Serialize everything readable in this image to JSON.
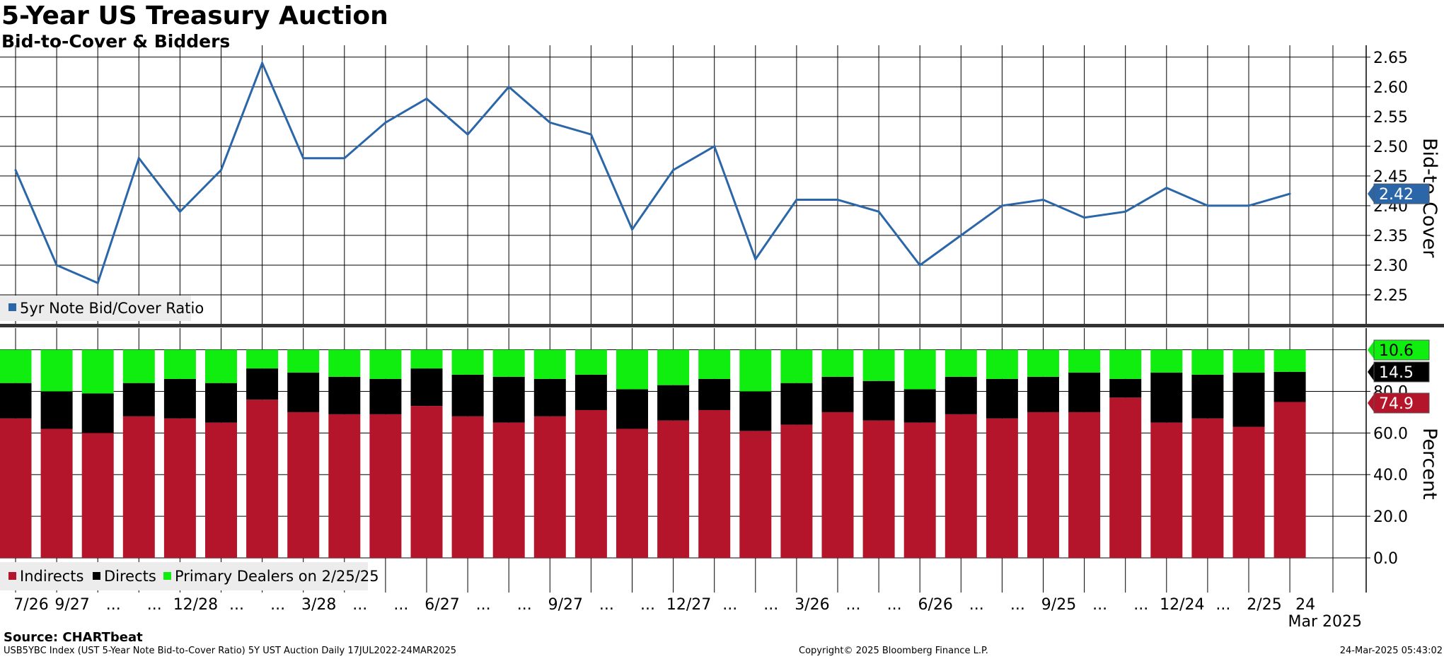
{
  "title": "5-Year US Treasury Auction",
  "subtitle": "Bid-to-Cover & Bidders",
  "source": "Source: CHARTbeat",
  "footer": {
    "left": "USB5YBC Index (UST 5-Year Note Bid-to-Cover Ratio) 5Y UST Auction  Daily 17JUL2022-24MAR2025",
    "center": "Copyright© 2025 Bloomberg Finance L.P.",
    "right": "24-Mar-2025 05:43:02"
  },
  "colors": {
    "line": "#2a66a8",
    "indirects": "#b5152b",
    "directs": "#000000",
    "dealers": "#10ee10",
    "grid": "#000000",
    "legend_bg": "#ececec"
  },
  "x_axis": {
    "tick_labels": [
      "7/26",
      "9/27",
      "...",
      "...",
      "12/28",
      "...",
      "...",
      "3/28",
      "...",
      "...",
      "6/27",
      "...",
      "...",
      "9/27",
      "...",
      "...",
      "12/27",
      "...",
      "...",
      "3/26",
      "...",
      "...",
      "6/26",
      "...",
      "...",
      "9/25",
      "...",
      "...",
      "12/24",
      "...",
      "2/25",
      "24"
    ],
    "year_label": "Mar 2025"
  },
  "chart_data": [
    {
      "type": "line",
      "ylabel": "Bid-to-Cover",
      "ylim": [
        2.2,
        2.67
      ],
      "y_ticks": [
        "2.25",
        "2.30",
        "2.35",
        "2.40",
        "2.45",
        "2.50",
        "2.55",
        "2.60",
        "2.65"
      ],
      "grid": true,
      "legend_position": "bottom-left",
      "series": [
        {
          "name": "5yr Note Bid/Cover Ratio",
          "values": [
            2.46,
            2.3,
            2.27,
            2.48,
            2.39,
            2.46,
            2.64,
            2.48,
            2.48,
            2.54,
            2.58,
            2.52,
            2.6,
            2.54,
            2.52,
            2.36,
            2.46,
            2.5,
            2.31,
            2.41,
            2.41,
            2.39,
            2.3,
            2.35,
            2.4,
            2.41,
            2.38,
            2.39,
            2.43,
            2.4,
            2.4,
            2.42
          ],
          "last_value_label": "2.42"
        }
      ]
    },
    {
      "type": "bar",
      "stacked": true,
      "ylabel": "Percent",
      "ylim": [
        -16,
        100
      ],
      "y_ticks": [
        "0.0",
        "20.0",
        "40.0",
        "60.0",
        "80.0"
      ],
      "grid": true,
      "legend_position": "bottom-left",
      "legend_suffix": "on 2/25/25",
      "series": [
        {
          "name": "Indirects",
          "values": [
            67,
            62,
            60,
            68,
            67,
            65,
            76,
            70,
            69,
            69,
            73,
            68,
            65,
            68,
            71,
            62,
            66,
            71,
            61,
            64,
            70,
            66,
            65,
            69,
            67,
            70,
            70,
            77,
            65,
            67,
            63,
            74.9
          ],
          "last_value_label": "74.9"
        },
        {
          "name": "Directs",
          "values": [
            17,
            18,
            19,
            16,
            19,
            19,
            15,
            19,
            18,
            17,
            18,
            20,
            22,
            18,
            17,
            19,
            17,
            15,
            19,
            20,
            17,
            19,
            16,
            18,
            19,
            17,
            19,
            9,
            24,
            21,
            26,
            14.5
          ],
          "last_value_label": "14.5"
        },
        {
          "name": "Primary Dealers",
          "values": [
            16,
            20,
            21,
            16,
            14,
            16,
            9,
            11,
            13,
            14,
            9,
            12,
            13,
            14,
            12,
            19,
            17,
            14,
            20,
            16,
            13,
            15,
            19,
            13,
            14,
            13,
            11,
            14,
            11,
            12,
            11,
            10.6
          ],
          "last_value_label": "10.6"
        }
      ]
    }
  ]
}
